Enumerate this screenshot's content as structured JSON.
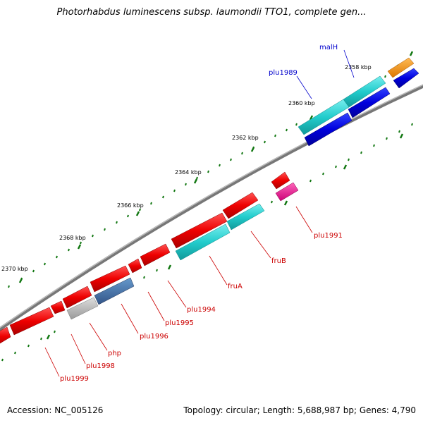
{
  "title": "Photorhabdus luminescens subsp. laumondii TTO1, complete gen...",
  "footer": {
    "accession": "Accession: NC_005126",
    "summary": "Topology: circular; Length: 5,688,987 bp; Genes: 4,790"
  },
  "scale_labels": [
    "2358 kbp",
    "2360 kbp",
    "2362 kbp",
    "2364 kbp",
    "2366 kbp",
    "2368 kbp",
    "2370 kbp"
  ],
  "gene_labels": {
    "malH": "malH",
    "plu1989": "plu1989",
    "plu1991": "plu1991",
    "fruB": "fruB",
    "fruA": "fruA",
    "plu1994": "plu1994",
    "plu1995": "plu1995",
    "plu1996": "plu1996",
    "php": "php",
    "plu1998": "plu1998",
    "plu1999": "plu1999"
  },
  "colors": {
    "red": "#ee0000",
    "cyan": "#22cccc",
    "blue": "#0000dd",
    "orange": "#ff8800",
    "magenta": "#ee1188",
    "gray": "#bbbbbb",
    "steel": "#4477aa",
    "backbone": "#888888",
    "tick": "#117711",
    "blue_label": "#0000cc",
    "red_label": "#cc0000"
  }
}
